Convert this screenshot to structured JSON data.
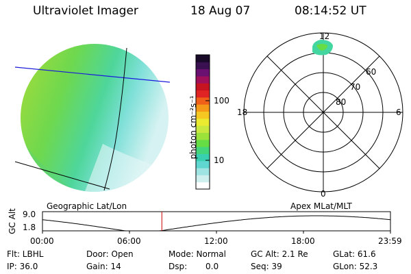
{
  "header": {
    "title": "Ultraviolet Imager",
    "date": "18 Aug 07",
    "time": "08:14:52 UT"
  },
  "colorbar": {
    "label": "photon cm⁻²s⁻¹",
    "ticks": [
      "100",
      "10"
    ],
    "colors": [
      "#ffffff",
      "#cfeeee",
      "#9fe3e3",
      "#5fd6d0",
      "#38d0b0",
      "#44d67a",
      "#66dd44",
      "#9be23a",
      "#c8e840",
      "#eaea30",
      "#f4c820",
      "#f49a18",
      "#f06018",
      "#e02424",
      "#c81420",
      "#a0105a",
      "#6a1070",
      "#3a1050",
      "#180a28"
    ]
  },
  "polar": {
    "mlt_labels": {
      "top": "12",
      "left": "18",
      "right": "6",
      "bottom": "0"
    },
    "lat_labels": [
      "60",
      "70",
      "80"
    ]
  },
  "timeline": {
    "ylabel": "GC Alt",
    "y_ticks": [
      "9.0",
      "1.8"
    ],
    "left_title": "Geographic Lat/Lon",
    "right_title": "Apex  MLat/MLT",
    "x_ticks": [
      "00:00",
      "06:00",
      "12:00",
      "18:00",
      "23:59"
    ],
    "marker_color": "#cc0000"
  },
  "status": {
    "filter": "Flt: LBHL",
    "ip": "IP: 36.0",
    "door": "Door: Open",
    "gain": "Gain: 14",
    "mode": "Mode: Normal",
    "dsp_label": "Dsp:",
    "dsp_value": "0.0",
    "gc_alt": "GC Alt: 2.1 Re",
    "seq": "Seq: 39",
    "glat": "GLat:  61.6",
    "glon": "GLon:  52.3"
  }
}
